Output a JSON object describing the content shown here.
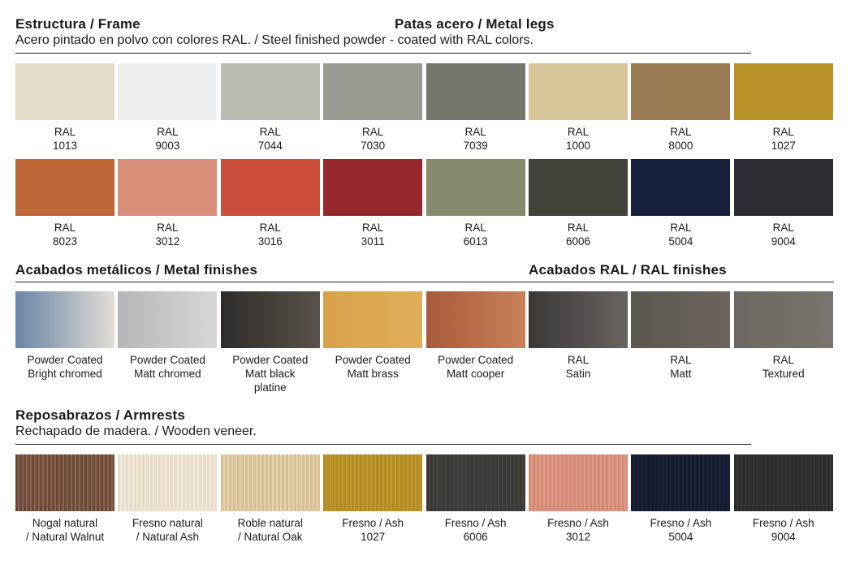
{
  "frame": {
    "title": "Estructura / Frame",
    "legs_title": "Patas acero / Metal legs",
    "subtitle": "Acero pintado en polvo con colores RAL. / Steel finished powder - coated with RAL colors.",
    "row1": [
      {
        "l1": "RAL",
        "l2": "1013",
        "color": "#e5dccb"
      },
      {
        "l1": "RAL",
        "l2": "9003",
        "color": "#ecefec"
      },
      {
        "l1": "RAL",
        "l2": "7044",
        "color": "#bbbbb2"
      },
      {
        "l1": "RAL",
        "l2": "7030",
        "color": "#9c9b93"
      },
      {
        "l1": "RAL",
        "l2": "7039",
        "color": "#74746c"
      },
      {
        "l1": "RAL",
        "l2": "1000",
        "color": "#d8c69b"
      },
      {
        "l1": "RAL",
        "l2": "8000",
        "color": "#9a7a52"
      },
      {
        "l1": "RAL",
        "l2": "1027",
        "color": "#b89329"
      }
    ],
    "row2": [
      {
        "l1": "RAL",
        "l2": "8023",
        "color": "#bf6737"
      },
      {
        "l1": "RAL",
        "l2": "3012",
        "color": "#d98e7a"
      },
      {
        "l1": "RAL",
        "l2": "3016",
        "color": "#cb4f3b"
      },
      {
        "l1": "RAL",
        "l2": "3011",
        "color": "#96272c"
      },
      {
        "l1": "RAL",
        "l2": "6013",
        "color": "#878a6c"
      },
      {
        "l1": "RAL",
        "l2": "6006",
        "color": "#434139"
      },
      {
        "l1": "RAL",
        "l2": "5004",
        "color": "#16203a"
      },
      {
        "l1": "RAL",
        "l2": "9004",
        "color": "#2c2e33"
      }
    ]
  },
  "metal": {
    "title": "Acabados metálicos / Metal finishes",
    "ral_title": "Acabados RAL / RAL finishes",
    "items": [
      {
        "l1": "Powder Coated",
        "l2": "Bright chromed",
        "color": "#6a85a6",
        "color2": "#e3ddd6"
      },
      {
        "l1": "Powder Coated",
        "l2": "Matt chromed",
        "color": "#b6b6b8",
        "color2": "#d8d8da"
      },
      {
        "l1": "Powder Coated",
        "l2": "Matt black",
        "l3": "platine",
        "color": "#2f2b28",
        "color2": "#59524b"
      },
      {
        "l1": "Powder Coated",
        "l2": "Matt brass",
        "color": "#d8a24a",
        "color2": "#e0ae5a"
      },
      {
        "l1": "Powder Coated",
        "l2": "Matt cooper",
        "color": "#a85b3a",
        "color2": "#c98158"
      },
      {
        "l1": "RAL",
        "l2": "Satin",
        "color": "#3b3734",
        "color2": "#6a6460"
      },
      {
        "l1": "RAL",
        "l2": "Matt",
        "color": "#5b5650",
        "color2": "#6b655e"
      },
      {
        "l1": "RAL",
        "l2": "Textured",
        "color": "#6d6762",
        "color2": "#7a746e"
      }
    ]
  },
  "armrests": {
    "title": "Reposabrazos / Armrests",
    "subtitle": "Rechapado de madera. / Wooden veneer.",
    "items": [
      {
        "l1": "Nogal natural",
        "l2": "/ Natural Walnut",
        "color": "#6b4a3a",
        "color2": "#8a6450"
      },
      {
        "l1": "Fresno natural",
        "l2": "/ Natural Ash",
        "color": "#e6dcc8",
        "color2": "#f1eadb"
      },
      {
        "l1": "Roble natural",
        "l2": "/ Natural Oak",
        "color": "#d8c096",
        "color2": "#e6d3ae"
      },
      {
        "l1": "Fresno / Ash",
        "l2": "1027",
        "color": "#b08a22",
        "color2": "#c39a2c"
      },
      {
        "l1": "Fresno / Ash",
        "l2": "6006",
        "color": "#3a3935",
        "color2": "#45443f"
      },
      {
        "l1": "Fresno / Ash",
        "l2": "3012",
        "color": "#d48b75",
        "color2": "#de9a86"
      },
      {
        "l1": "Fresno / Ash",
        "l2": "5004",
        "color": "#141b2e",
        "color2": "#1b2338"
      },
      {
        "l1": "Fresno / Ash",
        "l2": "9004",
        "color": "#2a2c30",
        "color2": "#33353a"
      }
    ]
  }
}
